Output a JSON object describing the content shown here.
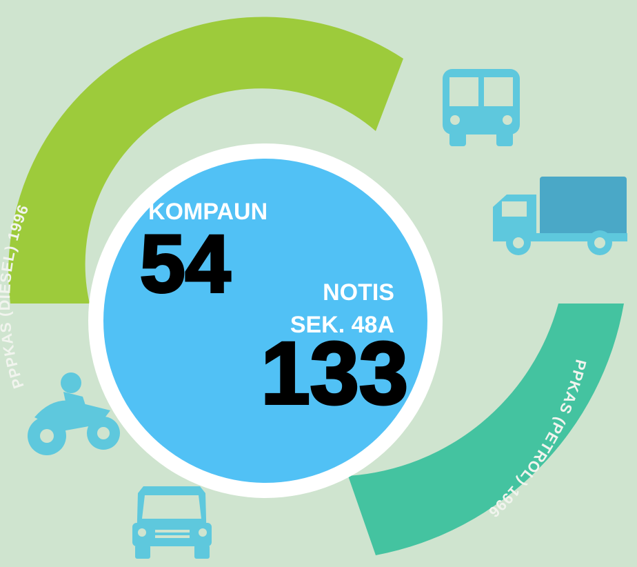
{
  "arcs": [
    {
      "label": "PPPKAS (DIESEL) 1996"
    },
    {
      "label": "PPKAS (PETROL) 1996"
    }
  ],
  "center": {
    "kompaun_label": "KOMPAUN",
    "kompaun_value": "54",
    "notis_label": "NOTIS",
    "notis_sub": "SEK. 48A",
    "notis_value": "133"
  }
}
